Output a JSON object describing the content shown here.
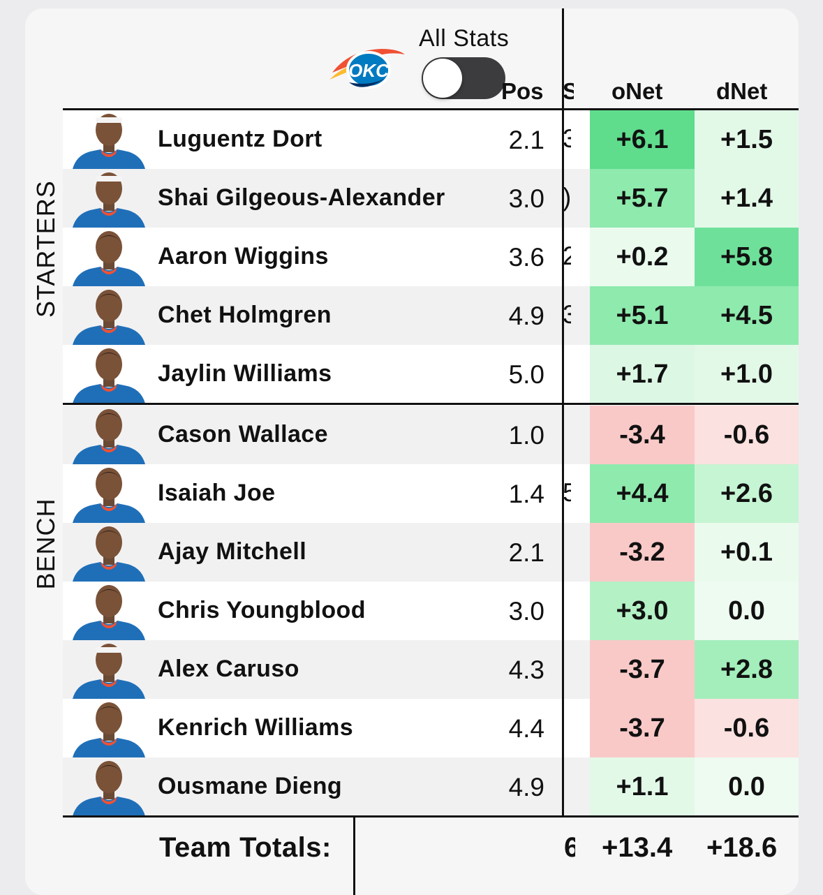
{
  "header": {
    "logo_text": "OKC",
    "all_stats_label": "All Stats",
    "toggle_on": false,
    "columns": {
      "pos": "Pos",
      "s_fragment": "S",
      "onet": "oNet",
      "dnet": "dNet"
    }
  },
  "sections": {
    "starters": "STARTERS",
    "bench": "BENCH"
  },
  "colors": {
    "green_strong": "#5fdc8c",
    "green_mid": "#8eeaad",
    "green_light": "#c6f5d3",
    "green_faint": "#e3f9e8",
    "red_mid": "#f9c9c8",
    "red_faint": "#fbe1e0"
  },
  "players": [
    {
      "name": "Luguentz Dort",
      "pos": "2.1",
      "s_fragment": "3",
      "onet": "+6.1",
      "dnet": "+1.5",
      "onet_color": "#5fdc8c",
      "dnet_color": "#e3f9e8",
      "headband": true
    },
    {
      "name": "Shai Gilgeous-Alexander",
      "pos": "3.0",
      "s_fragment": ")",
      "onet": "+5.7",
      "dnet": "+1.4",
      "onet_color": "#8eeaad",
      "dnet_color": "#e3f9e8",
      "headband": true
    },
    {
      "name": "Aaron Wiggins",
      "pos": "3.6",
      "s_fragment": "2",
      "onet": "+0.2",
      "dnet": "+5.8",
      "onet_color": "#eafbee",
      "dnet_color": "#6ee09a",
      "headband": false
    },
    {
      "name": "Chet Holmgren",
      "pos": "4.9",
      "s_fragment": "3",
      "onet": "+5.1",
      "dnet": "+4.5",
      "onet_color": "#8eeaad",
      "dnet_color": "#8eeaad",
      "headband": false
    },
    {
      "name": "Jaylin Williams",
      "pos": "5.0",
      "s_fragment": "",
      "onet": "+1.7",
      "dnet": "+1.0",
      "onet_color": "#dcf7e3",
      "dnet_color": "#e3f9e8",
      "headband": false
    },
    {
      "name": "Cason Wallace",
      "pos": "1.0",
      "s_fragment": "",
      "onet": "-3.4",
      "dnet": "-0.6",
      "onet_color": "#f9c9c8",
      "dnet_color": "#fbe1e0",
      "headband": false
    },
    {
      "name": "Isaiah Joe",
      "pos": "1.4",
      "s_fragment": "5",
      "onet": "+4.4",
      "dnet": "+2.6",
      "onet_color": "#8eeaad",
      "dnet_color": "#c6f5d3",
      "headband": false
    },
    {
      "name": "Ajay Mitchell",
      "pos": "2.1",
      "s_fragment": "",
      "onet": "-3.2",
      "dnet": "+0.1",
      "onet_color": "#f9c9c8",
      "dnet_color": "#eafbee",
      "headband": false
    },
    {
      "name": "Chris Youngblood",
      "pos": "3.0",
      "s_fragment": "",
      "onet": "+3.0",
      "dnet": "0.0",
      "onet_color": "#b4f1c5",
      "dnet_color": "#eefbf1",
      "headband": false
    },
    {
      "name": "Alex Caruso",
      "pos": "4.3",
      "s_fragment": "",
      "onet": "-3.7",
      "dnet": "+2.8",
      "onet_color": "#f9c9c8",
      "dnet_color": "#a3eebb",
      "headband": true
    },
    {
      "name": "Kenrich Williams",
      "pos": "4.4",
      "s_fragment": "",
      "onet": "-3.7",
      "dnet": "-0.6",
      "onet_color": "#f9c9c8",
      "dnet_color": "#fbe1e0",
      "headband": false
    },
    {
      "name": "Ousmane Dieng",
      "pos": "4.9",
      "s_fragment": "",
      "onet": "+1.1",
      "dnet": "0.0",
      "onet_color": "#e3f9e8",
      "dnet_color": "#eefbf1",
      "headband": false
    }
  ],
  "totals": {
    "label": "Team Totals:",
    "s_fragment": "6",
    "onet": "+13.4",
    "dnet": "+18.6"
  }
}
